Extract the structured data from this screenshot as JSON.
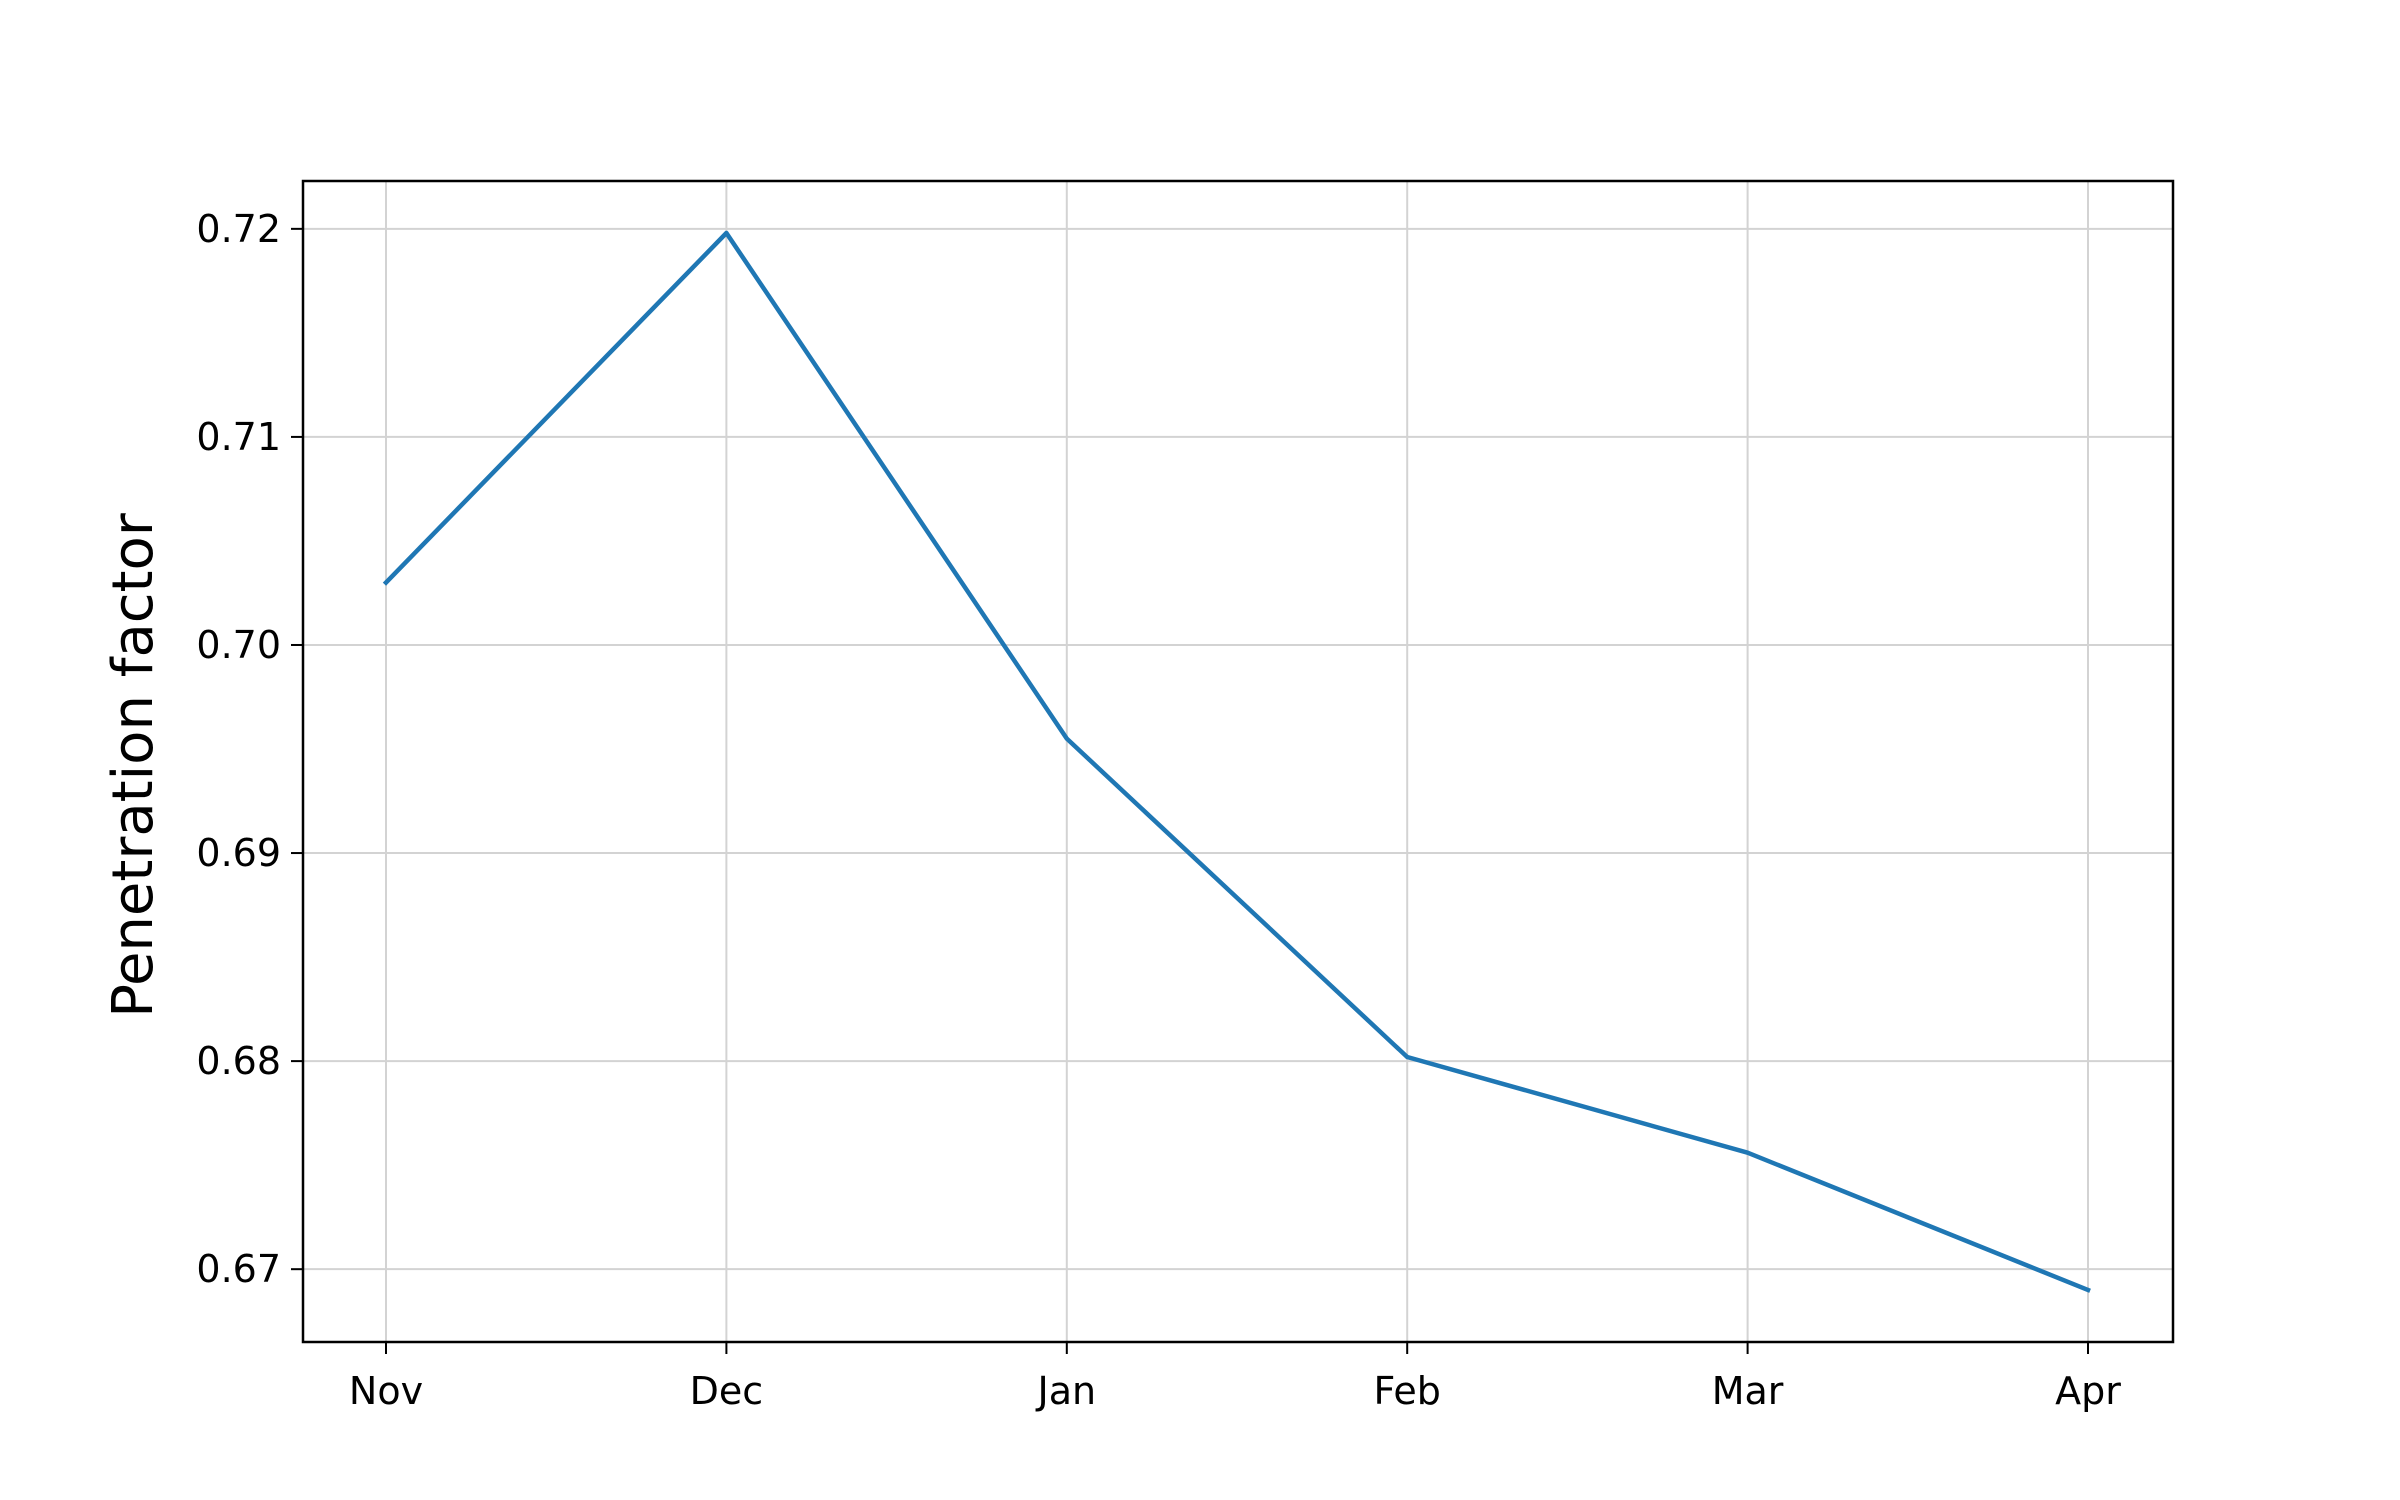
{
  "chart_data": {
    "type": "line",
    "title": "",
    "xlabel": "",
    "ylabel": "Penetration factor",
    "categories": [
      "Nov",
      "Dec",
      "Jan",
      "Feb",
      "Mar",
      "Apr"
    ],
    "series": [
      {
        "values": [
          0.703,
          0.7198,
          0.6955,
          0.6802,
          0.6756,
          0.669
        ],
        "color": "#1f77b4"
      }
    ],
    "ylim": [
      0.6665,
      0.7223
    ],
    "yticks": [
      0.67,
      0.68,
      0.69,
      0.7,
      0.71,
      0.72
    ],
    "ytick_labels": [
      "0.67",
      "0.68",
      "0.69",
      "0.70",
      "0.71",
      "0.72"
    ],
    "grid": true,
    "legend": "none"
  }
}
